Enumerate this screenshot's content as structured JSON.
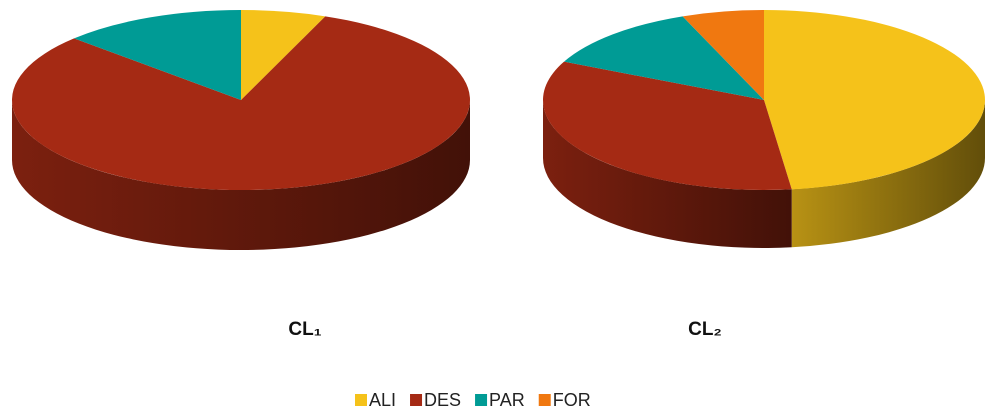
{
  "chart_data": [
    {
      "type": "pie",
      "title": "CL₁",
      "categories": [
        "ALI",
        "DES",
        "PAR",
        "FOR"
      ],
      "values": [
        6,
        81,
        13,
        0
      ],
      "colors": [
        "#f5c21a",
        "#a52a14",
        "#009b95",
        "#f07810"
      ]
    },
    {
      "type": "pie",
      "title": "CL₂",
      "categories": [
        "ALI",
        "DES",
        "PAR",
        "FOR"
      ],
      "values": [
        48,
        34,
        12,
        6
      ],
      "colors": [
        "#f5c21a",
        "#a52a14",
        "#009b95",
        "#f07810"
      ]
    }
  ]
}
